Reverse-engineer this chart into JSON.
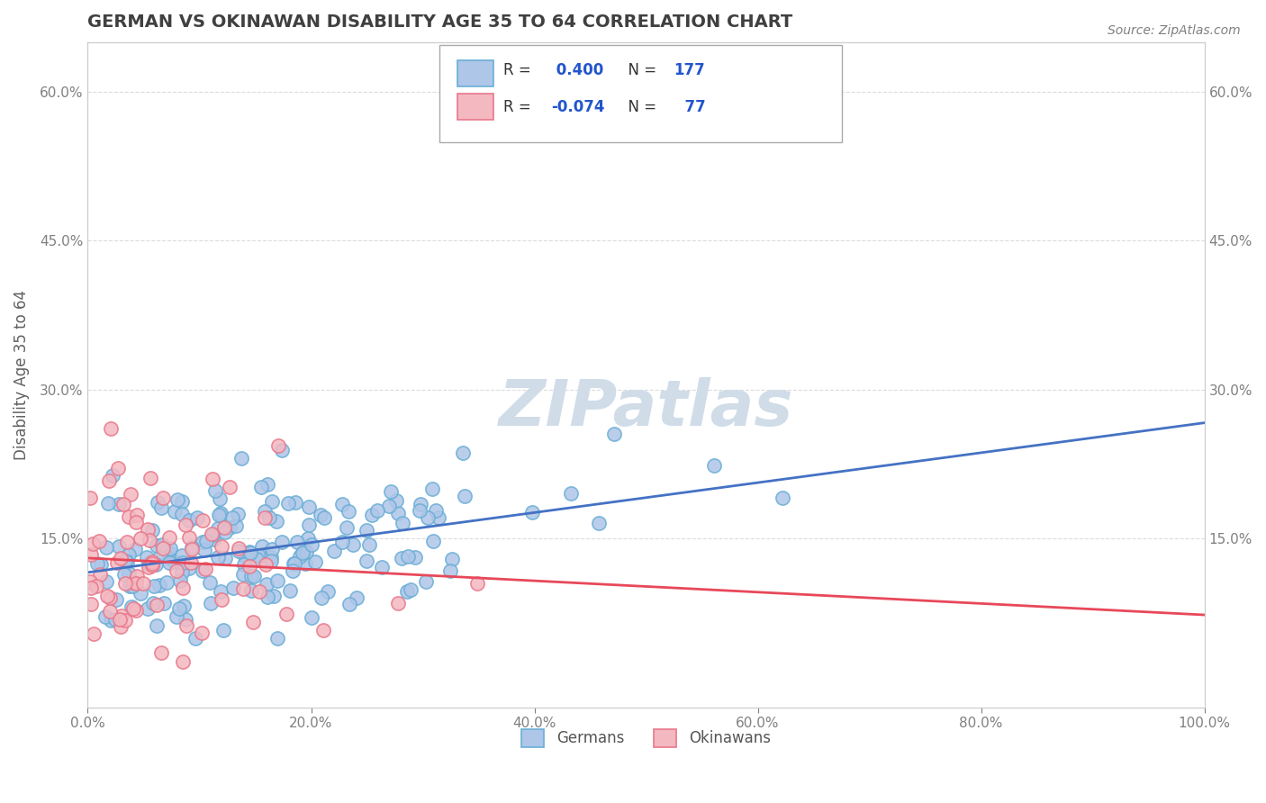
{
  "title": "GERMAN VS OKINAWAN DISABILITY AGE 35 TO 64 CORRELATION CHART",
  "source_text": "Source: ZipAtlas.com",
  "xlabel": "",
  "ylabel": "Disability Age 35 to 64",
  "xlim": [
    0,
    1.0
  ],
  "ylim": [
    -0.02,
    0.65
  ],
  "xticks": [
    0.0,
    0.2,
    0.4,
    0.6,
    0.8,
    1.0
  ],
  "xtick_labels": [
    "0.0%",
    "20.0%",
    "40.0%",
    "60.0%",
    "80.0%",
    "100.0%"
  ],
  "yticks": [
    0.15,
    0.3,
    0.45,
    0.6
  ],
  "ytick_labels": [
    "15.0%",
    "30.0%",
    "45.0%",
    "60.0%"
  ],
  "german_R": 0.4,
  "german_N": 177,
  "okinawan_R": -0.074,
  "okinawan_N": 77,
  "german_color": "#aec6e8",
  "german_edge_color": "#6aaed6",
  "okinawan_color": "#f4b8c1",
  "okinawan_edge_color": "#e8788a",
  "trend_german_color": "#4472c4",
  "trend_okinawan_color": "#e8485a",
  "watermark_color": "#d0dce8",
  "legend_german_label": "Germans",
  "legend_okinawan_label": "Okinawans",
  "background_color": "#ffffff",
  "grid_color": "#cccccc",
  "title_color": "#404040",
  "axis_label_color": "#606060",
  "tick_color": "#808080",
  "legend_R_color": "#2255cc",
  "german_seed": 42,
  "okinawan_seed": 7
}
